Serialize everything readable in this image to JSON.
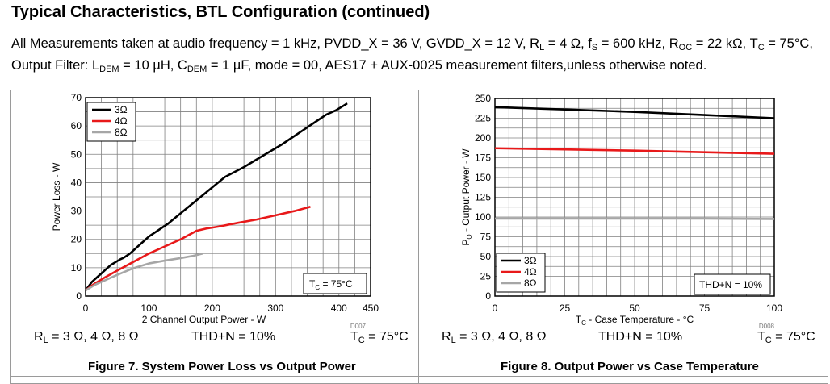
{
  "heading": "Typical Characteristics, BTL Configuration (continued)",
  "intro": {
    "p1": "All Measurements taken at audio frequency = 1 kHz, PVDD_X = 36 V, GVDD_X = 12 V, R",
    "s1": "L",
    "p2": " = 4 Ω, f",
    "s2": "S",
    "p3": " = 600 kHz, R",
    "s3": "OC",
    "p4": " = 22 kΩ, T",
    "s4": "C",
    "p5": " = 75°C, Output Filter: L",
    "s5": "DEM",
    "p6": " = 10 µH, C",
    "s6": "DEM",
    "p7": " = 1 µF, mode = 00, AES17 + AUX-0025 measurement filters,unless otherwise noted."
  },
  "figures": [
    {
      "code": "D007",
      "conditions": {
        "rl_a": "R",
        "rl_sub": "L",
        "rl_b": " = 3 Ω, 4 Ω, 8 Ω",
        "thd": "THD+N = 10%",
        "tc_a": "T",
        "tc_sub": "C",
        "tc_b": " = 75°C"
      },
      "caption": "Figure 7. System Power Loss vs Output Power"
    },
    {
      "code": "D008",
      "conditions": {
        "rl_a": "R",
        "rl_sub": "L",
        "rl_b": " = 3 Ω, 4 Ω, 8 Ω",
        "thd": "THD+N = 10%",
        "tc_a": "T",
        "tc_sub": "C",
        "tc_b": " = 75°C"
      },
      "caption": "Figure 8. Output Power vs Case Temperature"
    }
  ],
  "chart_data": [
    {
      "type": "line",
      "xlabel": "2 Channel Output Power - W",
      "ylabel": "Power Loss - W",
      "xlim": [
        0,
        450
      ],
      "ylim": [
        0,
        70
      ],
      "xticks": [
        0,
        100,
        200,
        300,
        400,
        450
      ],
      "yticks": [
        0,
        10,
        20,
        30,
        40,
        50,
        60,
        70
      ],
      "grid": true,
      "legend_position": "top-left",
      "annotation": {
        "main": "T",
        "sub": "C",
        "rest": " = 75°C"
      },
      "annotation_position": "bottom-right",
      "series": [
        {
          "name": "3Ω",
          "color": "#000000",
          "x": [
            0,
            10,
            25,
            40,
            55,
            60,
            70,
            80,
            100,
            130,
            160,
            190,
            220,
            250,
            280,
            310,
            340,
            360,
            380,
            395,
            410,
            413
          ],
          "y": [
            2,
            5,
            8,
            11,
            13,
            13.5,
            15,
            17,
            21,
            25.5,
            31,
            36.5,
            42,
            45.5,
            49.5,
            53.5,
            58,
            61,
            64,
            65.5,
            67.5,
            68
          ]
        },
        {
          "name": "4Ω",
          "color": "#e8191a",
          "x": [
            0,
            15,
            30,
            50,
            75,
            100,
            125,
            150,
            175,
            190,
            210,
            240,
            270,
            300,
            330,
            355
          ],
          "y": [
            2,
            4.5,
            6.5,
            9,
            12,
            15,
            17.5,
            20,
            23,
            23.8,
            24.5,
            25.8,
            27,
            28.5,
            30,
            31.5
          ]
        },
        {
          "name": "8Ω",
          "color": "#a6a6a6",
          "x": [
            0,
            15,
            30,
            50,
            75,
            100,
            125,
            150,
            170,
            185
          ],
          "y": [
            2,
            4,
            5.5,
            7.5,
            9.8,
            11.5,
            12.5,
            13.4,
            14.2,
            15
          ]
        }
      ]
    },
    {
      "type": "line",
      "xlabel": {
        "main": "T",
        "sub": "C",
        "rest": " - Case Temperature - °C"
      },
      "ylabel": {
        "main": "P",
        "sub": "O",
        "rest": " - Output Power - W"
      },
      "xlim": [
        0,
        100
      ],
      "ylim": [
        0,
        250
      ],
      "xticks": [
        0,
        25,
        50,
        75,
        100
      ],
      "yticks": [
        0,
        25,
        50,
        75,
        100,
        125,
        150,
        175,
        200,
        225,
        250
      ],
      "grid": true,
      "legend_position": "bottom-left",
      "annotation": "THD+N = 10%",
      "annotation_position": "bottom-right",
      "series": [
        {
          "name": "3Ω",
          "color": "#000000",
          "x": [
            0,
            25,
            50,
            75,
            100
          ],
          "y": [
            239,
            236,
            233,
            229,
            225
          ]
        },
        {
          "name": "4Ω",
          "color": "#e8191a",
          "x": [
            0,
            25,
            50,
            75,
            100
          ],
          "y": [
            187,
            185.5,
            184,
            182,
            180
          ]
        },
        {
          "name": "8Ω",
          "color": "#a6a6a6",
          "x": [
            0,
            25,
            50,
            75,
            100
          ],
          "y": [
            98,
            98,
            98,
            98,
            97.5
          ]
        }
      ]
    }
  ]
}
